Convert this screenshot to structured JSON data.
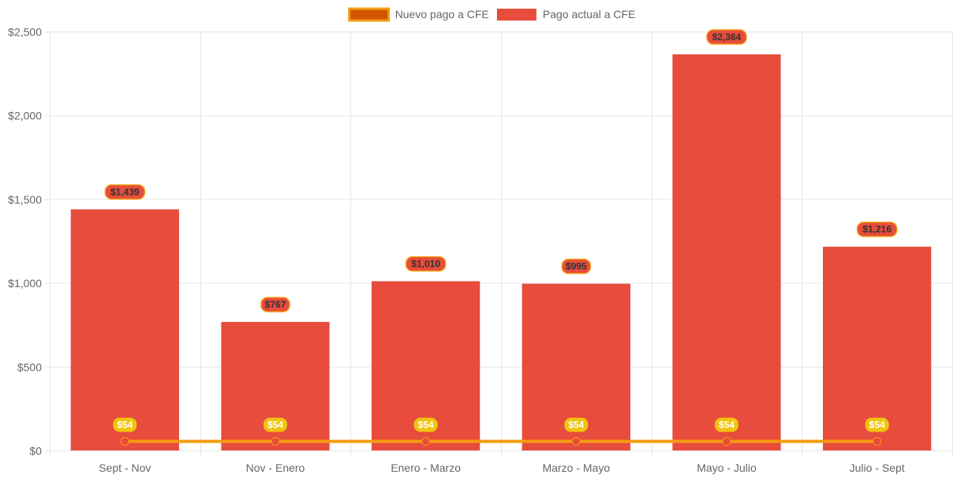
{
  "colors": {
    "bar_fill": "#E74C3C",
    "line_stroke": "#F39C12",
    "line_point": "#E74C3C",
    "legend_line_fill": "#D35400",
    "legend_line_border": "#F39C12",
    "bar_label_border": "#F39C12",
    "line_label_fill": "#F1C40F",
    "grid": "#e6e6e6",
    "tick_text": "#666666"
  },
  "chart_data": {
    "type": "bar",
    "title": "",
    "xlabel": "",
    "ylabel": "",
    "ylim": [
      0,
      2500
    ],
    "y_ticks": [
      {
        "value": 0,
        "label": "$0"
      },
      {
        "value": 500,
        "label": "$500"
      },
      {
        "value": 1000,
        "label": "$1,000"
      },
      {
        "value": 1500,
        "label": "$1,500"
      },
      {
        "value": 2000,
        "label": "$2,000"
      },
      {
        "value": 2500,
        "label": "$2,500"
      }
    ],
    "categories": [
      "Sept - Nov",
      "Nov - Enero",
      "Enero - Marzo",
      "Marzo - Mayo",
      "Mayo - Julio",
      "Julio - Sept"
    ],
    "legend_position": "top-center",
    "grid": true,
    "series": [
      {
        "name": "Nuevo pago a CFE",
        "kind": "line",
        "values": [
          54,
          54,
          54,
          54,
          54,
          54
        ],
        "labels": [
          "$54",
          "$54",
          "$54",
          "$54",
          "$54",
          "$54"
        ]
      },
      {
        "name": "Pago actual a CFE",
        "kind": "bar",
        "values": [
          1439,
          767,
          1010,
          995,
          2364,
          1216
        ],
        "labels": [
          "$1,439",
          "$767",
          "$1,010",
          "$995",
          "$2,364",
          "$1,216"
        ]
      }
    ]
  }
}
